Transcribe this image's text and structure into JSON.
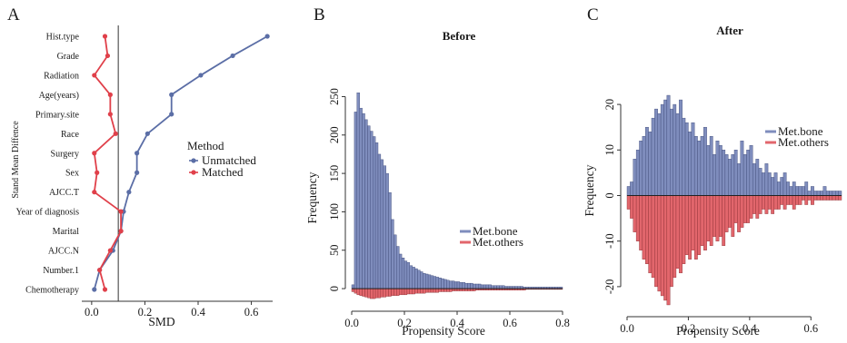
{
  "panels": {
    "a": "A",
    "b": "B",
    "c": "C"
  },
  "colors": {
    "unmatched": "#5b6ea6",
    "matched": "#e0404a",
    "bone": "#7f8dbd",
    "others": "#e2666c",
    "vline": "#333333"
  },
  "chart_data": [
    {
      "type": "line",
      "panel": "A",
      "ylabel": "Stand Mean Diffence",
      "xlabel": "SMD",
      "xlim": [
        -0.02,
        0.68
      ],
      "xticks": [
        "0.0",
        "0.2",
        "0.4",
        "0.6"
      ],
      "reference_line": 0.1,
      "categories": [
        "Hist.type",
        "Grade",
        "Radiation",
        "Age(years)",
        "Primary.site",
        "Race",
        "Surgery",
        "Sex",
        "AJCC.T",
        "Year of diagnosis",
        "Marital",
        "AJCC.N",
        "Number.1",
        "Chemotherapy"
      ],
      "legend": {
        "title": "Method",
        "items": [
          "Unmatched",
          "Matched"
        ]
      },
      "series": [
        {
          "name": "Unmatched",
          "values": [
            0.66,
            0.53,
            0.41,
            0.3,
            0.3,
            0.21,
            0.17,
            0.17,
            0.14,
            0.12,
            0.11,
            0.08,
            0.03,
            0.01
          ]
        },
        {
          "name": "Matched",
          "values": [
            0.05,
            0.06,
            0.01,
            0.07,
            0.07,
            0.09,
            0.01,
            0.02,
            0.01,
            0.11,
            0.11,
            0.07,
            0.03,
            0.05
          ]
        }
      ]
    },
    {
      "type": "bar",
      "panel": "B",
      "title": "Before",
      "xlabel": "Propensity Score",
      "ylabel": "Frequency",
      "xlim": [
        0,
        0.8
      ],
      "ylim": [
        -20,
        260
      ],
      "xticks": [
        "0.0",
        "0.2",
        "0.4",
        "0.6",
        "0.8"
      ],
      "yticks": [
        "0",
        "50",
        "100",
        "150",
        "200",
        "250"
      ],
      "bin_start": 0,
      "bin_width": 0.01,
      "legend": [
        "Met.bone",
        "Met.others"
      ],
      "series": [
        {
          "name": "Met.bone",
          "values": [
            5,
            230,
            255,
            235,
            228,
            220,
            212,
            205,
            198,
            190,
            175,
            168,
            160,
            150,
            125,
            90,
            70,
            55,
            45,
            40,
            36,
            34,
            30,
            28,
            26,
            24,
            22,
            20,
            19,
            18,
            17,
            16,
            15,
            14,
            13,
            12,
            11,
            10,
            10,
            9,
            9,
            8,
            8,
            7,
            7,
            7,
            6,
            6,
            6,
            5,
            5,
            5,
            5,
            4,
            4,
            4,
            4,
            4,
            3,
            3,
            3,
            3,
            3,
            3,
            3,
            2,
            2,
            2,
            2,
            2,
            2,
            2,
            2,
            2,
            2,
            2,
            2,
            2,
            2,
            2
          ]
        },
        {
          "name": "Met.others",
          "values": [
            4,
            6,
            8,
            9,
            10,
            11,
            12,
            13,
            13,
            12,
            12,
            11,
            11,
            10,
            10,
            9,
            9,
            9,
            8,
            8,
            8,
            7,
            7,
            7,
            6,
            6,
            6,
            6,
            5,
            5,
            5,
            5,
            5,
            4,
            4,
            4,
            4,
            4,
            3,
            3,
            3,
            3,
            3,
            3,
            3,
            3,
            3,
            2,
            2,
            2,
            2,
            2,
            2,
            2,
            2,
            2,
            2,
            2,
            2,
            2,
            2,
            2,
            2,
            2,
            2,
            2,
            1,
            1,
            1,
            1,
            1,
            1,
            1,
            1,
            1,
            1,
            1,
            1,
            1,
            1
          ]
        }
      ]
    },
    {
      "type": "bar",
      "panel": "C",
      "title": "After",
      "xlabel": "Propensity Score",
      "ylabel": "Frequency",
      "xlim": [
        0,
        0.7
      ],
      "ylim": [
        -25,
        24
      ],
      "xticks": [
        "0.0",
        "0.2",
        "0.4",
        "0.6"
      ],
      "yticks": [
        "-20",
        "-10",
        "0",
        "10",
        "20"
      ],
      "bin_start": 0,
      "bin_width": 0.01,
      "legend": [
        "Met.bone",
        "Met.others"
      ],
      "series": [
        {
          "name": "Met.bone",
          "values": [
            2,
            3,
            8,
            10,
            12,
            13,
            15,
            14,
            17,
            19,
            18,
            20,
            21,
            22,
            19,
            20,
            18,
            21,
            17,
            16,
            14,
            16,
            13,
            12,
            13,
            15,
            11,
            13,
            9,
            12,
            11,
            10,
            9,
            8,
            9,
            10,
            7,
            12,
            9,
            10,
            11,
            7,
            8,
            6,
            5,
            7,
            5,
            4,
            5,
            3,
            4,
            5,
            3,
            2,
            3,
            2,
            2,
            2,
            3,
            1,
            2,
            1,
            1,
            1,
            2,
            1,
            1,
            1,
            1,
            1
          ]
        },
        {
          "name": "Met.others",
          "values": [
            -3,
            -5,
            -8,
            -10,
            -12,
            -14,
            -15,
            -17,
            -18,
            -20,
            -21,
            -22,
            -23,
            -24,
            -20,
            -18,
            -16,
            -17,
            -15,
            -13,
            -14,
            -12,
            -14,
            -13,
            -11,
            -12,
            -10,
            -11,
            -9,
            -10,
            -9,
            -11,
            -8,
            -7,
            -9,
            -6,
            -8,
            -7,
            -6,
            -6,
            -5,
            -4,
            -5,
            -4,
            -3,
            -4,
            -3,
            -4,
            -3,
            -3,
            -2,
            -3,
            -2,
            -2,
            -3,
            -2,
            -2,
            -1,
            -2,
            -1,
            -2,
            -1,
            -1,
            -1,
            -1,
            -1,
            -1,
            -1,
            -1,
            -1
          ]
        }
      ]
    }
  ]
}
